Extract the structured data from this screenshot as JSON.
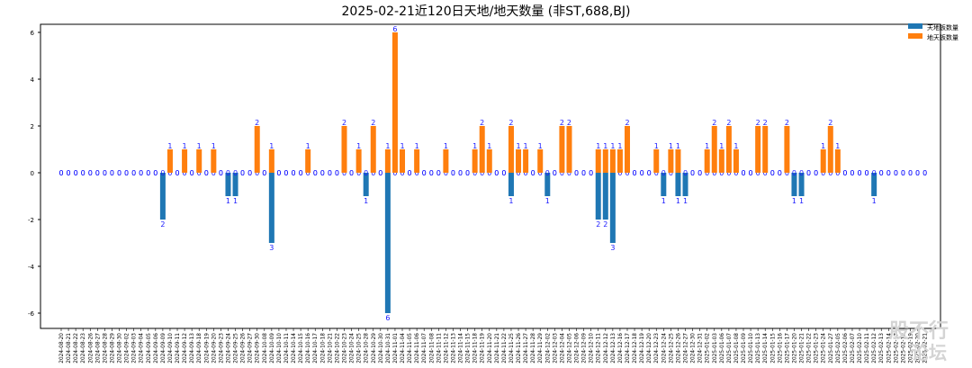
{
  "chart_data": {
    "type": "bar",
    "title": "2025-02-21近120日天地/地天数量 (非ST,688,BJ)",
    "xlabel": "",
    "ylabel": "",
    "ylim": [
      -6.5,
      6.5
    ],
    "yticks": [
      -6,
      -4,
      -2,
      0,
      2,
      4,
      6
    ],
    "legend_position": "top-right",
    "categories": [
      "2024-08-20",
      "2024-08-21",
      "2024-08-22",
      "2024-08-23",
      "2024-08-26",
      "2024-08-27",
      "2024-08-28",
      "2024-08-29",
      "2024-08-30",
      "2024-09-02",
      "2024-09-03",
      "2024-09-04",
      "2024-09-05",
      "2024-09-06",
      "2024-09-09",
      "2024-09-10",
      "2024-09-11",
      "2024-09-12",
      "2024-09-13",
      "2024-09-18",
      "2024-09-19",
      "2024-09-20",
      "2024-09-23",
      "2024-09-24",
      "2024-09-25",
      "2024-09-26",
      "2024-09-27",
      "2024-09-30",
      "2024-10-08",
      "2024-10-09",
      "2024-10-10",
      "2024-10-11",
      "2024-10-14",
      "2024-10-15",
      "2024-10-16",
      "2024-10-17",
      "2024-10-18",
      "2024-10-21",
      "2024-10-22",
      "2024-10-23",
      "2024-10-24",
      "2024-10-25",
      "2024-10-28",
      "2024-10-29",
      "2024-10-30",
      "2024-10-31",
      "2024-11-01",
      "2024-11-04",
      "2024-11-05",
      "2024-11-06",
      "2024-11-07",
      "2024-11-08",
      "2024-11-11",
      "2024-11-12",
      "2024-11-13",
      "2024-11-14",
      "2024-11-15",
      "2024-11-18",
      "2024-11-19",
      "2024-11-20",
      "2024-11-21",
      "2024-11-22",
      "2024-11-25",
      "2024-11-26",
      "2024-11-27",
      "2024-11-28",
      "2024-11-29",
      "2024-12-02",
      "2024-12-03",
      "2024-12-04",
      "2024-12-05",
      "2024-12-06",
      "2024-12-09",
      "2024-12-10",
      "2024-12-11",
      "2024-12-12",
      "2024-12-13",
      "2024-12-16",
      "2024-12-17",
      "2024-12-18",
      "2024-12-19",
      "2024-12-20",
      "2024-12-23",
      "2024-12-24",
      "2024-12-25",
      "2024-12-26",
      "2024-12-27",
      "2024-12-30",
      "2024-12-31",
      "2025-01-02",
      "2025-01-03",
      "2025-01-06",
      "2025-01-07",
      "2025-01-08",
      "2025-01-09",
      "2025-01-10",
      "2025-01-13",
      "2025-01-14",
      "2025-01-15",
      "2025-01-16",
      "2025-01-17",
      "2025-01-20",
      "2025-01-21",
      "2025-01-22",
      "2025-01-23",
      "2025-01-24",
      "2025-01-27",
      "2025-02-05",
      "2025-02-06",
      "2025-02-07",
      "2025-02-10",
      "2025-02-11",
      "2025-02-12",
      "2025-02-13",
      "2025-02-14",
      "2025-02-17",
      "2025-02-18",
      "2025-02-19",
      "2025-02-20",
      "2025-02-21"
    ],
    "series": [
      {
        "name": "天地板数量",
        "color": "#1f77b4",
        "values": [
          0,
          0,
          0,
          0,
          0,
          0,
          0,
          0,
          0,
          0,
          0,
          0,
          0,
          0,
          2,
          0,
          0,
          0,
          0,
          0,
          0,
          0,
          0,
          1,
          1,
          0,
          0,
          0,
          0,
          3,
          0,
          0,
          0,
          0,
          0,
          0,
          0,
          0,
          0,
          0,
          0,
          0,
          1,
          0,
          0,
          6,
          0,
          0,
          0,
          0,
          0,
          0,
          0,
          0,
          0,
          0,
          0,
          0,
          0,
          0,
          0,
          0,
          1,
          0,
          0,
          0,
          0,
          1,
          0,
          0,
          0,
          0,
          0,
          0,
          2,
          2,
          3,
          0,
          0,
          0,
          0,
          0,
          0,
          1,
          0,
          1,
          1,
          0,
          0,
          0,
          0,
          0,
          0,
          0,
          0,
          0,
          0,
          0,
          0,
          0,
          0,
          1,
          1,
          0,
          0,
          0,
          0,
          0,
          0,
          0,
          0,
          0,
          1,
          0,
          0,
          0,
          0,
          0,
          0,
          0
        ]
      },
      {
        "name": "地天板数量",
        "color": "#ff7f0e",
        "values": [
          0,
          0,
          0,
          0,
          0,
          0,
          0,
          0,
          0,
          0,
          0,
          0,
          0,
          0,
          0,
          1,
          0,
          1,
          0,
          1,
          0,
          1,
          0,
          0,
          0,
          0,
          0,
          2,
          0,
          1,
          0,
          0,
          0,
          0,
          1,
          0,
          0,
          0,
          0,
          2,
          0,
          1,
          0,
          2,
          0,
          1,
          6,
          1,
          0,
          1,
          0,
          0,
          0,
          1,
          0,
          0,
          0,
          1,
          2,
          1,
          0,
          0,
          2,
          1,
          1,
          0,
          1,
          0,
          0,
          2,
          2,
          0,
          0,
          0,
          1,
          1,
          1,
          1,
          2,
          0,
          0,
          0,
          1,
          0,
          1,
          1,
          0,
          0,
          0,
          1,
          2,
          1,
          2,
          1,
          0,
          0,
          2,
          2,
          0,
          0,
          2,
          0,
          0,
          0,
          0,
          1,
          2,
          1,
          0,
          0,
          0,
          0,
          0,
          0,
          0,
          0,
          0,
          0,
          0,
          0
        ]
      }
    ]
  },
  "watermark": {
    "line1": "股不行",
    "line2": "论坛"
  }
}
